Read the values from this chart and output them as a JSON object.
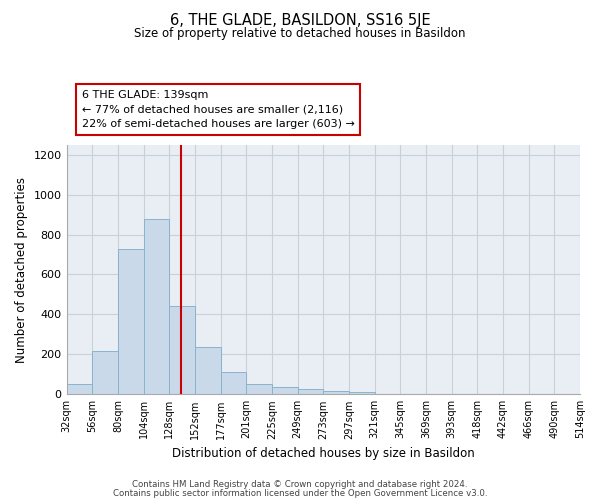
{
  "title": "6, THE GLADE, BASILDON, SS16 5JE",
  "subtitle": "Size of property relative to detached houses in Basildon",
  "xlabel": "Distribution of detached houses by size in Basildon",
  "ylabel": "Number of detached properties",
  "bin_labels": [
    "32sqm",
    "56sqm",
    "80sqm",
    "104sqm",
    "128sqm",
    "152sqm",
    "177sqm",
    "201sqm",
    "225sqm",
    "249sqm",
    "273sqm",
    "297sqm",
    "321sqm",
    "345sqm",
    "369sqm",
    "393sqm",
    "418sqm",
    "442sqm",
    "466sqm",
    "490sqm",
    "514sqm"
  ],
  "bar_heights": [
    50,
    215,
    730,
    880,
    440,
    235,
    110,
    50,
    35,
    25,
    15,
    10,
    0,
    0,
    0,
    0,
    0,
    0,
    0,
    0
  ],
  "bar_color": "#c9d9ea",
  "bar_edge_color": "#8ab4cc",
  "plot_bg_color": "#e8eef4",
  "ylim": [
    0,
    1250
  ],
  "yticks": [
    0,
    200,
    400,
    600,
    800,
    1000,
    1200
  ],
  "vline_color": "#cc0000",
  "annotation_text": "6 THE GLADE: 139sqm\n← 77% of detached houses are smaller (2,116)\n22% of semi-detached houses are larger (603) →",
  "footnote1": "Contains HM Land Registry data © Crown copyright and database right 2024.",
  "footnote2": "Contains public sector information licensed under the Open Government Licence v3.0.",
  "background_color": "#ffffff",
  "grid_color": "#c8d0d8"
}
